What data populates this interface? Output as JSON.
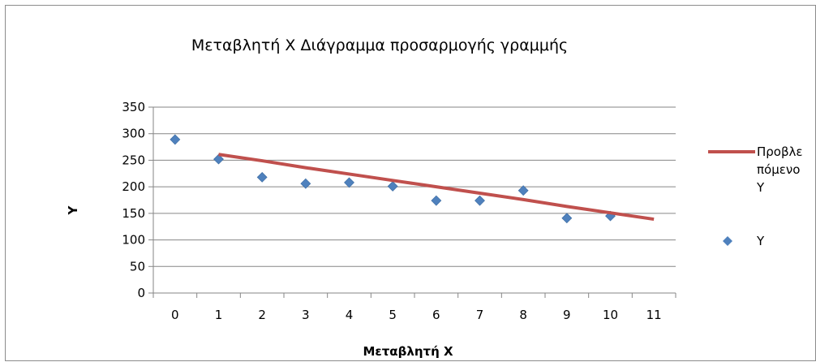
{
  "chart_data": {
    "type": "scatter",
    "title": "Μεταβλητή X Διάγραμμα προσαρμογής γραμμής",
    "xlabel": "Μεταβλητή X",
    "ylabel": "Y",
    "x_ticks": [
      "0",
      "1",
      "2",
      "3",
      "4",
      "5",
      "6",
      "7",
      "8",
      "9",
      "10",
      "11"
    ],
    "y_ticks": [
      "0",
      "50",
      "100",
      "150",
      "200",
      "250",
      "300",
      "350"
    ],
    "ylim": [
      0,
      350
    ],
    "grid": "horizontal",
    "legend_position": "right",
    "series": [
      {
        "name": "Y",
        "kind": "scatter",
        "marker": "diamond",
        "color": "#4f81bd",
        "x": [
          0,
          1,
          2,
          3,
          4,
          5,
          6,
          7,
          8,
          9,
          10
        ],
        "y": [
          289,
          252,
          218,
          206,
          208,
          201,
          174,
          174,
          193,
          141,
          145
        ]
      },
      {
        "name": "Προβλεπόμενο Y",
        "kind": "line",
        "color": "#c0504d",
        "x": [
          1,
          2,
          3,
          4,
          5,
          6,
          7,
          8,
          9,
          10,
          11
        ],
        "y": [
          261,
          249,
          236,
          224,
          212,
          200,
          188,
          176,
          163,
          151,
          139
        ]
      }
    ],
    "legend": [
      {
        "label_lines": [
          "Προβλε",
          "πόμενο",
          "Y"
        ],
        "marker": "line",
        "color": "#c0504d"
      },
      {
        "label_lines": [
          "Y"
        ],
        "marker": "diamond",
        "color": "#4f81bd"
      }
    ]
  }
}
